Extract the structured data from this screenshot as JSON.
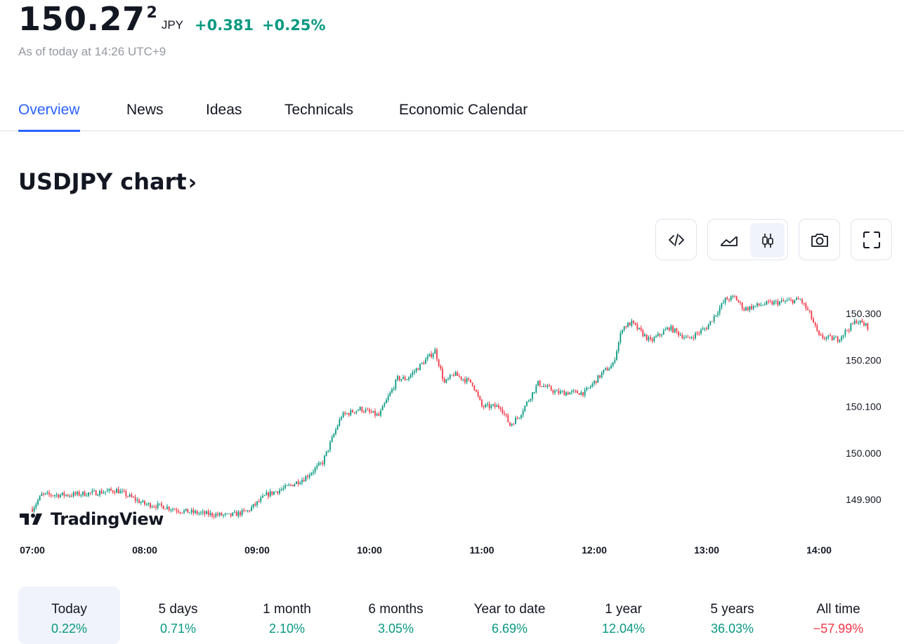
{
  "quote": {
    "price": "150.27",
    "price_sup": "2",
    "currency": "JPY",
    "change": "+0.381",
    "change_pct": "+0.25%",
    "as_of": "As of today at 14:26 UTC+9"
  },
  "tabs": [
    {
      "label": "Overview",
      "active": true
    },
    {
      "label": "News"
    },
    {
      "label": "Ideas"
    },
    {
      "label": "Technicals"
    },
    {
      "label": "Economic Calendar"
    }
  ],
  "chart_title": "USDJPY chart",
  "toolbar": {
    "embed_icon": "code-icon",
    "area_icon": "area-chart-icon",
    "candles_icon": "candlestick-icon",
    "snapshot_icon": "camera-icon",
    "fullscreen_icon": "fullscreen-icon",
    "selected_style": "candles"
  },
  "logo": {
    "text": "TradingView"
  },
  "chart_data": {
    "type": "candlestick",
    "title": "",
    "up_color": "#089981",
    "down_color": "#f23645",
    "x_ticks": [
      "07:00",
      "08:00",
      "09:00",
      "10:00",
      "11:00",
      "12:00",
      "13:00",
      "14:00"
    ],
    "y_ticks": [
      "150.300",
      "150.200",
      "150.100",
      "150.000",
      "149.900"
    ],
    "ylim": [
      149.82,
      150.37
    ],
    "x_range": [
      "07:00",
      "14:26"
    ],
    "anchors": [
      [
        "07:00",
        149.88
      ],
      [
        "07:05",
        149.91
      ],
      [
        "07:20",
        149.91
      ],
      [
        "07:35",
        149.915
      ],
      [
        "07:45",
        149.92
      ],
      [
        "07:50",
        149.91
      ],
      [
        "08:00",
        149.89
      ],
      [
        "08:10",
        149.885
      ],
      [
        "08:20",
        149.875
      ],
      [
        "08:30",
        149.87
      ],
      [
        "08:45",
        149.865
      ],
      [
        "08:55",
        149.875
      ],
      [
        "09:05",
        149.91
      ],
      [
        "09:15",
        149.925
      ],
      [
        "09:25",
        149.945
      ],
      [
        "09:35",
        149.98
      ],
      [
        "09:45",
        150.08
      ],
      [
        "09:55",
        150.095
      ],
      [
        "10:05",
        150.08
      ],
      [
        "10:15",
        150.16
      ],
      [
        "10:20",
        150.16
      ],
      [
        "10:30",
        150.2
      ],
      [
        "10:35",
        150.22
      ],
      [
        "10:40",
        150.15
      ],
      [
        "10:45",
        150.17
      ],
      [
        "10:55",
        150.15
      ],
      [
        "11:00",
        150.1
      ],
      [
        "11:10",
        150.1
      ],
      [
        "11:15",
        150.06
      ],
      [
        "11:20",
        150.08
      ],
      [
        "11:30",
        150.15
      ],
      [
        "11:40",
        150.13
      ],
      [
        "11:55",
        150.13
      ],
      [
        "12:05",
        150.175
      ],
      [
        "12:10",
        150.19
      ],
      [
        "12:15",
        150.27
      ],
      [
        "12:20",
        150.28
      ],
      [
        "12:30",
        150.24
      ],
      [
        "12:40",
        150.27
      ],
      [
        "12:50",
        150.245
      ],
      [
        "13:00",
        150.27
      ],
      [
        "13:10",
        150.33
      ],
      [
        "13:15",
        150.335
      ],
      [
        "13:20",
        150.31
      ],
      [
        "13:30",
        150.32
      ],
      [
        "13:40",
        150.325
      ],
      [
        "13:50",
        150.33
      ],
      [
        "13:55",
        150.3
      ],
      [
        "14:00",
        150.25
      ],
      [
        "14:10",
        150.245
      ],
      [
        "14:15",
        150.265
      ],
      [
        "14:20",
        150.285
      ],
      [
        "14:26",
        150.272
      ]
    ]
  },
  "ranges": [
    {
      "label": "Today",
      "value": "0.22%",
      "sign": "pos",
      "selected": true
    },
    {
      "label": "5 days",
      "value": "0.71%",
      "sign": "pos"
    },
    {
      "label": "1 month",
      "value": "2.10%",
      "sign": "pos"
    },
    {
      "label": "6 months",
      "value": "3.05%",
      "sign": "pos"
    },
    {
      "label": "Year to date",
      "value": "6.69%",
      "sign": "pos"
    },
    {
      "label": "1 year",
      "value": "12.04%",
      "sign": "pos"
    },
    {
      "label": "5 years",
      "value": "36.03%",
      "sign": "pos"
    },
    {
      "label": "All time",
      "value": "−57.99%",
      "sign": "neg"
    }
  ]
}
